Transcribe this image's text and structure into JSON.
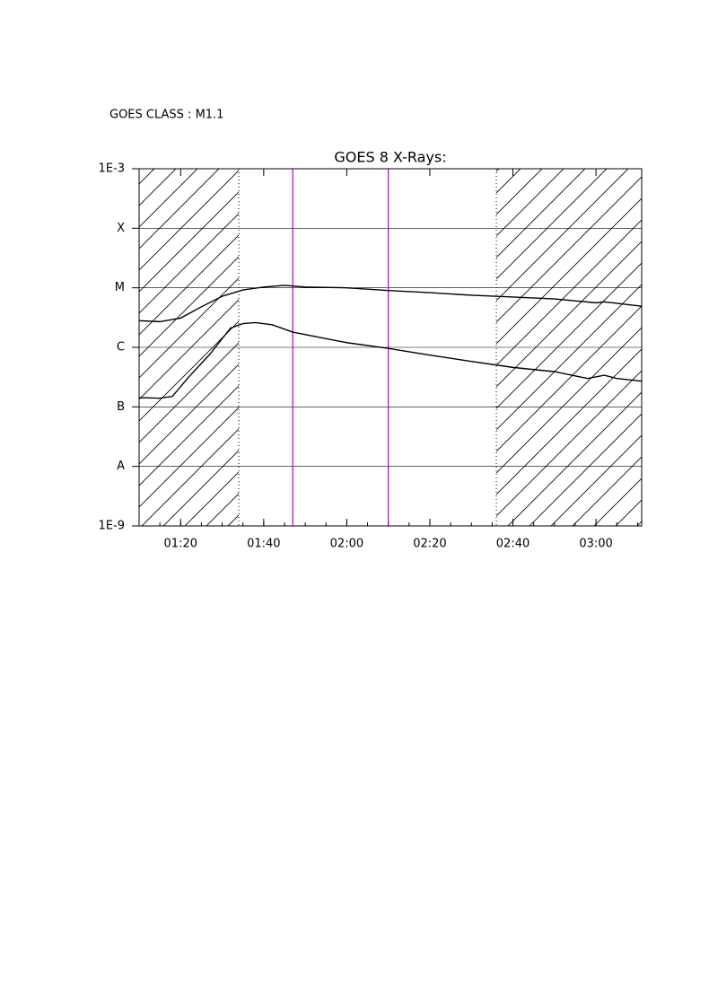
{
  "header": {
    "label": "GOES CLASS : M1.1"
  },
  "chart_data": {
    "type": "line",
    "title": "GOES 8 X-Rays:",
    "log_y": true,
    "grid": true,
    "xlim": [
      "01:10",
      "03:11"
    ],
    "xticks": [
      "01:20",
      "01:40",
      "02:00",
      "02:20",
      "02:40",
      "03:00"
    ],
    "ylim": [
      1e-09,
      0.001
    ],
    "yticks": [
      {
        "value": 1e-09,
        "label": "1E-9"
      },
      {
        "value": 1e-08,
        "label": "A"
      },
      {
        "value": 1e-07,
        "label": "B"
      },
      {
        "value": 1e-06,
        "label": "C"
      },
      {
        "value": 1e-05,
        "label": "M"
      },
      {
        "value": 0.0001,
        "label": "X"
      },
      {
        "value": 0.001,
        "label": "1E-3"
      }
    ],
    "shaded_intervals": [
      [
        "01:10",
        "01:34"
      ],
      [
        "02:36",
        "03:11"
      ]
    ],
    "markers": [
      "01:47",
      "02:10"
    ],
    "marker_color": "#b000c8",
    "series": [
      {
        "color": "#000000",
        "x": [
          "01:10",
          "01:15",
          "01:20",
          "01:25",
          "01:30",
          "01:35",
          "01:40",
          "01:45",
          "01:50",
          "02:00",
          "02:10",
          "02:20",
          "02:30",
          "02:40",
          "02:50",
          "03:00",
          "03:02",
          "03:11"
        ],
        "values": [
          2.8e-06,
          2.7e-06,
          3.1e-06,
          4.8e-06,
          7.2e-06,
          9.2e-06,
          1.03e-05,
          1.1e-05,
          1.03e-05,
          1e-05,
          9e-06,
          8.3e-06,
          7.5e-06,
          7e-06,
          6.5e-06,
          5.6e-06,
          5.8e-06,
          4.9e-06
        ]
      },
      {
        "color": "#000000",
        "x": [
          "01:10",
          "01:15",
          "01:18",
          "01:22",
          "01:27",
          "01:32",
          "01:35",
          "01:38",
          "01:42",
          "01:47",
          "01:55",
          "02:00",
          "02:10",
          "02:20",
          "02:30",
          "02:40",
          "02:50",
          "02:58",
          "03:02",
          "03:05",
          "03:11"
        ],
        "values": [
          1.43e-07,
          1.4e-07,
          1.5e-07,
          3.2e-07,
          7.6e-07,
          2.1e-06,
          2.5e-06,
          2.6e-06,
          2.4e-06,
          1.8e-06,
          1.4e-06,
          1.2e-06,
          9.6e-07,
          7.4e-07,
          5.8e-07,
          4.6e-07,
          3.9e-07,
          3e-07,
          3.4e-07,
          3e-07,
          2.7e-07
        ]
      }
    ]
  }
}
